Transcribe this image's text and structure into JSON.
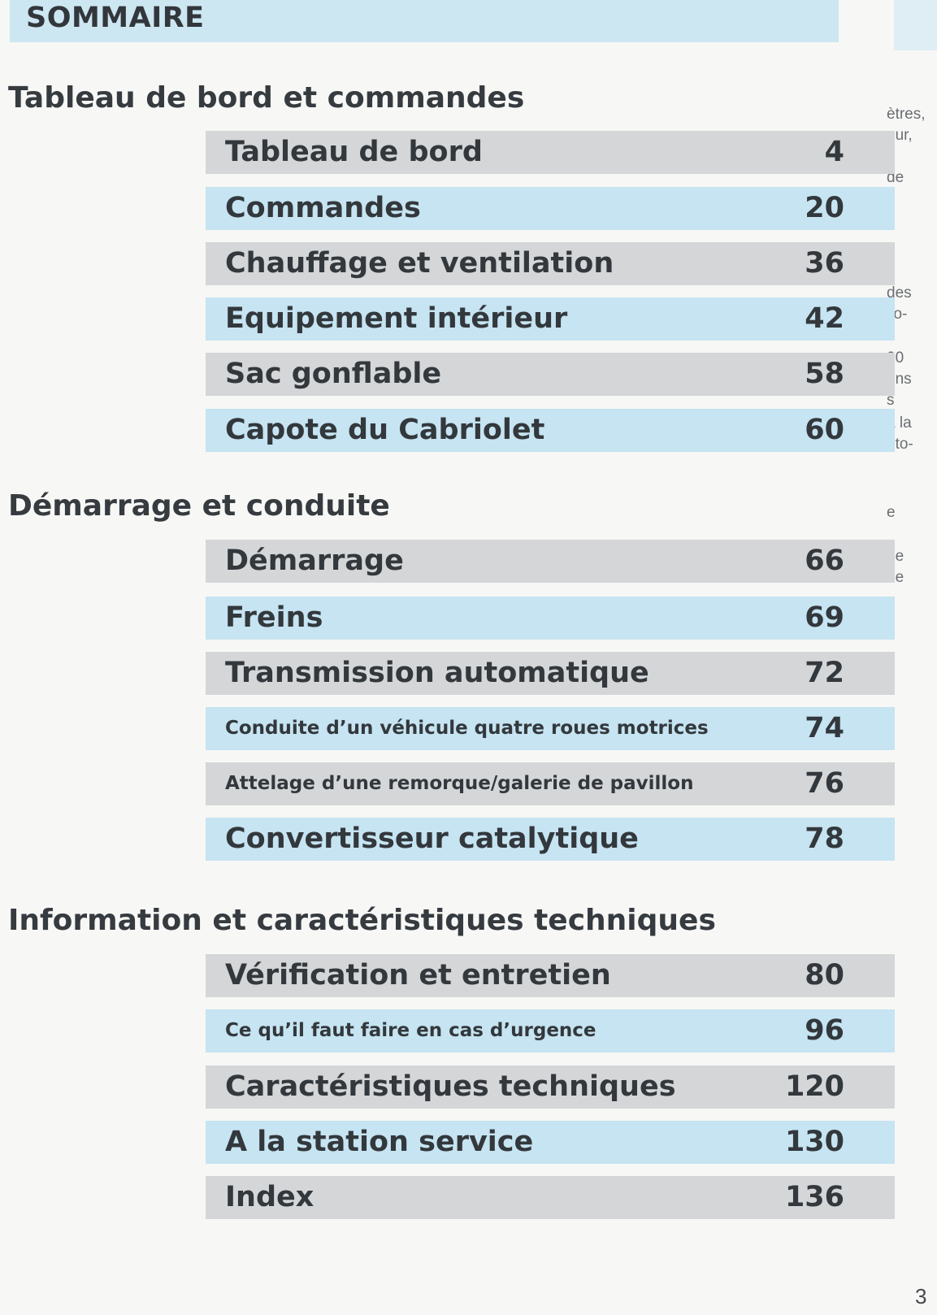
{
  "header": {
    "title": "SOMMAIRE"
  },
  "margin_fragments": [
    "ètres,\neur,\nz\nde",
    "e",
    "des\nilo-",
    "00\nons\ns",
    "à la\nuto-",
    "e",
    "ne\nde"
  ],
  "sections": [
    {
      "title": "Tableau de bord et commandes",
      "items": [
        {
          "label": "Tableau de bord",
          "page": "4"
        },
        {
          "label": "Commandes",
          "page": "20"
        },
        {
          "label": "Chauffage et ventilation",
          "page": "36"
        },
        {
          "label": "Equipement intérieur",
          "page": "42"
        },
        {
          "label": "Sac gonflable",
          "page": "58"
        },
        {
          "label": "Capote du Cabriolet",
          "page": "60"
        }
      ]
    },
    {
      "title": "Démarrage et conduite",
      "items": [
        {
          "label": "Démarrage",
          "page": "66"
        },
        {
          "label": "Freins",
          "page": "69"
        },
        {
          "label": "Transmission automatique",
          "page": "72"
        },
        {
          "label": "Conduite d’un véhicule quatre roues motrices",
          "page": "74"
        },
        {
          "label": "Attelage d’une remorque/galerie de pavillon",
          "page": "76"
        },
        {
          "label": "Convertisseur catalytique",
          "page": "78"
        }
      ]
    },
    {
      "title": "Information et caractéristiques techniques",
      "items": [
        {
          "label": "Vérification et entretien",
          "page": "80"
        },
        {
          "label": "Ce qu’il faut faire en cas d’urgence",
          "page": "96"
        },
        {
          "label": "Caractéristiques techniques",
          "page": "120"
        },
        {
          "label": "A la station service",
          "page": "130"
        },
        {
          "label": "Index",
          "page": "136"
        }
      ]
    }
  ],
  "footer": {
    "page_number": "3"
  }
}
